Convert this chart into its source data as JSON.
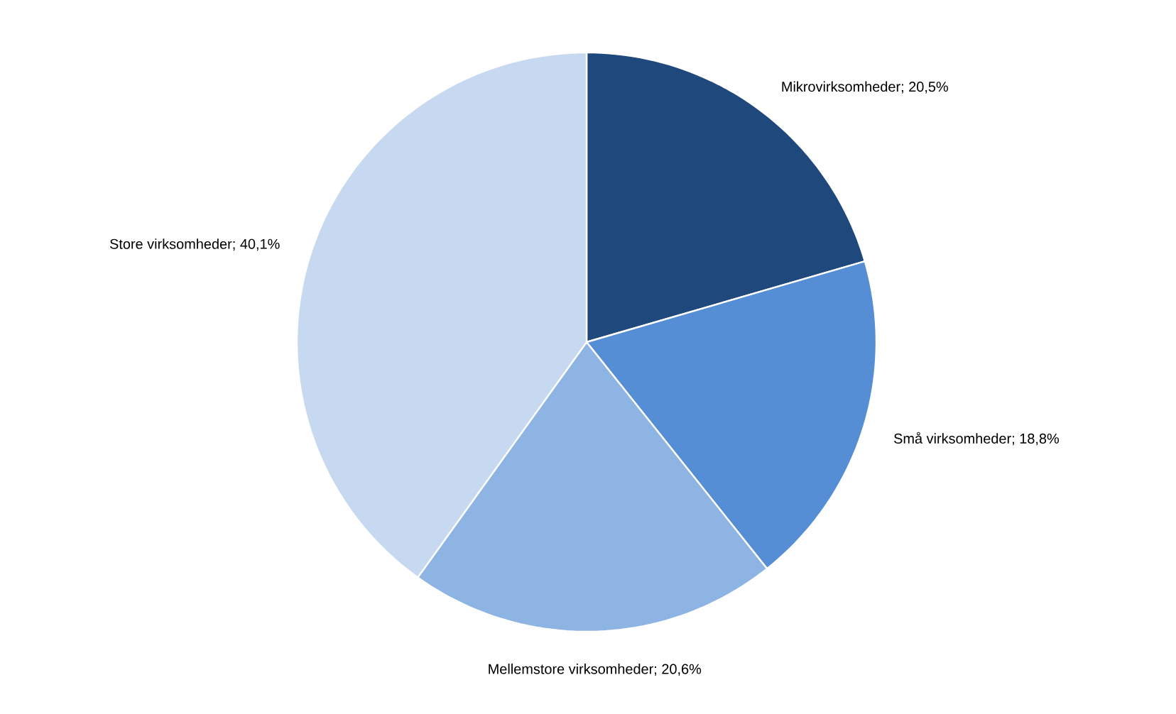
{
  "chart_data": {
    "type": "pie",
    "categories": [
      "Mikrovirksomheder; 20,5%",
      "Små virksomheder; 18,8%",
      "Mellemstore virksomheder; 20,6%",
      "Store virksomheder; 40,1%"
    ],
    "values": [
      20.5,
      18.8,
      20.6,
      40.1
    ],
    "colors": [
      "#1f497d",
      "#558ed5",
      "#8eb4e3",
      "#c6d9f1"
    ]
  }
}
